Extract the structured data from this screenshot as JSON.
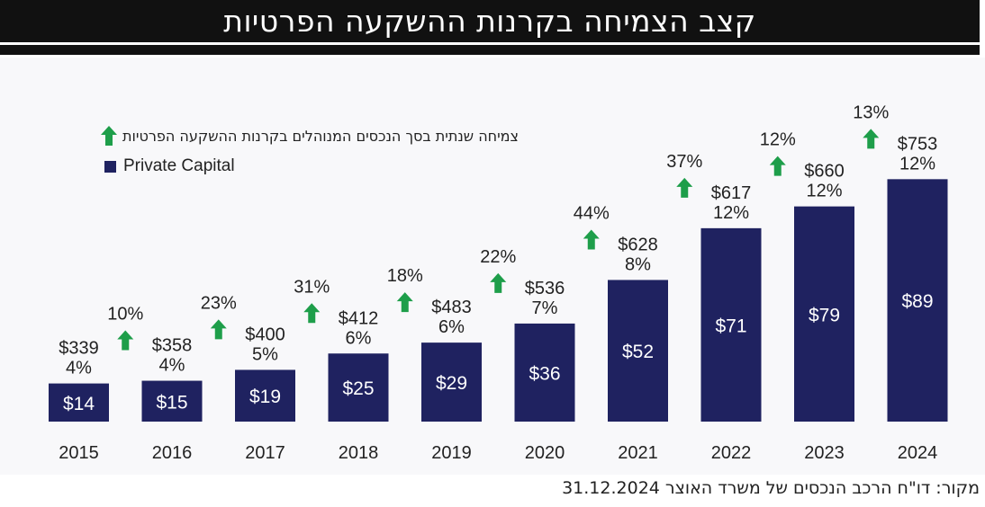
{
  "header": {
    "title": "קצב הצמיחה בקרנות ההשקעה הפרטיות"
  },
  "legend": {
    "growth_label": "צמיחה שנתית בסך הנכסים המנוהלים בקרנות ההשקעה הפרטיות",
    "bar_label": "Private Capital"
  },
  "source": {
    "text": "מקור: דו\"ח הרכב הנכסים של משרד האוצר 31.12.2024"
  },
  "colors": {
    "bar": "#1f2260",
    "arrow": "#1e9e4a",
    "text": "#222222"
  },
  "chart_data": {
    "type": "bar",
    "categories": [
      "2015",
      "2016",
      "2017",
      "2018",
      "2019",
      "2020",
      "2021",
      "2022",
      "2023",
      "2024"
    ],
    "series": [
      {
        "name": "Private Capital",
        "values": [
          14,
          15,
          19,
          25,
          29,
          36,
          52,
          71,
          79,
          89
        ],
        "labels": [
          "$14",
          "$15",
          "$19",
          "$25",
          "$29",
          "$36",
          "$52",
          "$71",
          "$79",
          "$89"
        ]
      }
    ],
    "top_values": [
      "$339",
      "$358",
      "$400",
      "$412",
      "$483",
      "$536",
      "$628",
      "$617",
      "$660",
      "$753"
    ],
    "top_percents": [
      "4%",
      "4%",
      "5%",
      "6%",
      "6%",
      "7%",
      "8%",
      "12%",
      "12%",
      "12%"
    ],
    "growth": [
      "10%",
      "23%",
      "31%",
      "18%",
      "22%",
      "44%",
      "37%",
      "12%",
      "13%"
    ],
    "ylim": [
      0,
      110
    ],
    "legend_position": "top-left"
  }
}
